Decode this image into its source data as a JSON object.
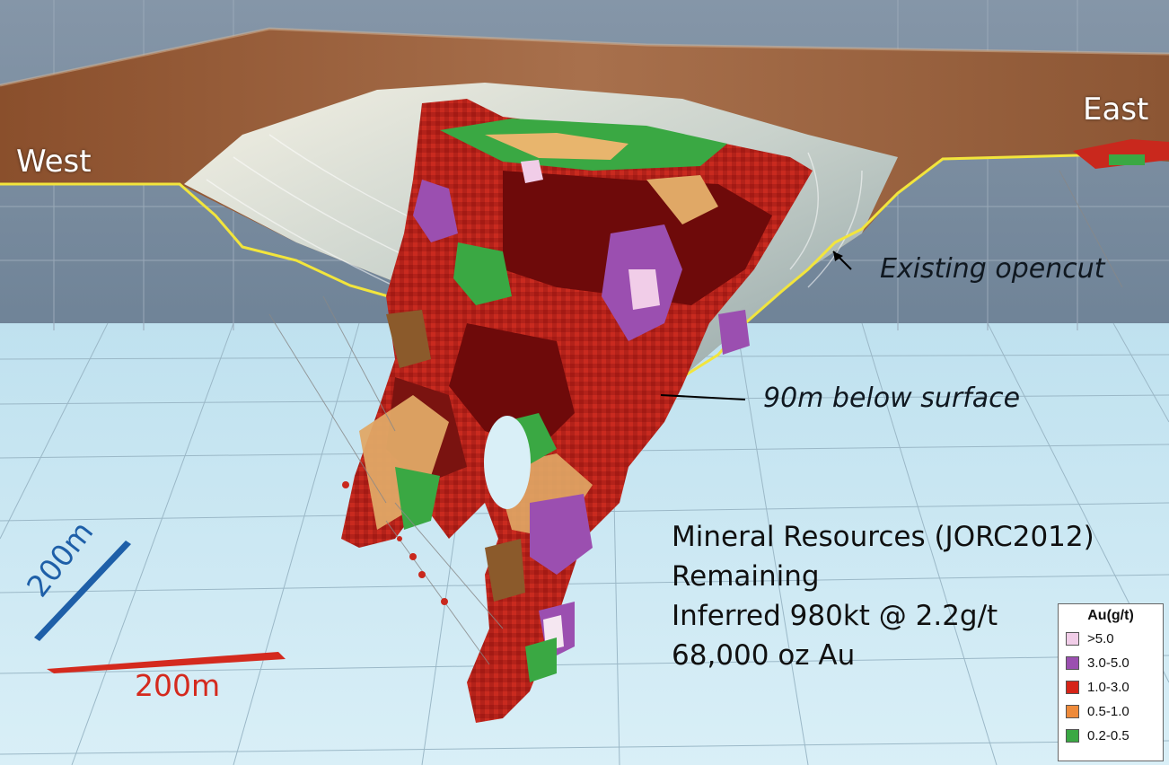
{
  "labels": {
    "west": "West",
    "east": "East",
    "existing_opencut": "Existing opencut",
    "depth_note": "90m below surface"
  },
  "resources": {
    "line1": "Mineral Resources (JORC2012)",
    "line2": "Remaining",
    "line3": "Inferred 980kt @ 2.2g/t",
    "line4": "68,000 oz  Au"
  },
  "scale": {
    "vertical_label": "200m",
    "horizontal_label": "200m",
    "vertical_color": "#1e5fa8",
    "horizontal_color": "#d42a1e"
  },
  "legend": {
    "title": "Au(g/t)",
    "items": [
      {
        "label": ">5.0",
        "color": "#f1cde8"
      },
      {
        "label": "3.0-5.0",
        "color": "#9b4fb0"
      },
      {
        "label": "1.0-3.0",
        "color": "#d62418"
      },
      {
        "label": "0.5-1.0",
        "color": "#ee8a3a"
      },
      {
        "label": "0.2-0.5",
        "color": "#3aa843"
      }
    ]
  },
  "colors": {
    "surface": "#9a5f3c",
    "pit_wall": "#cfd6d2",
    "wall_grey": "#7b8fa3",
    "floor": "#cfe8f3",
    "surface_line": "#f2e53c",
    "dark_red": "#6e0a0a"
  }
}
